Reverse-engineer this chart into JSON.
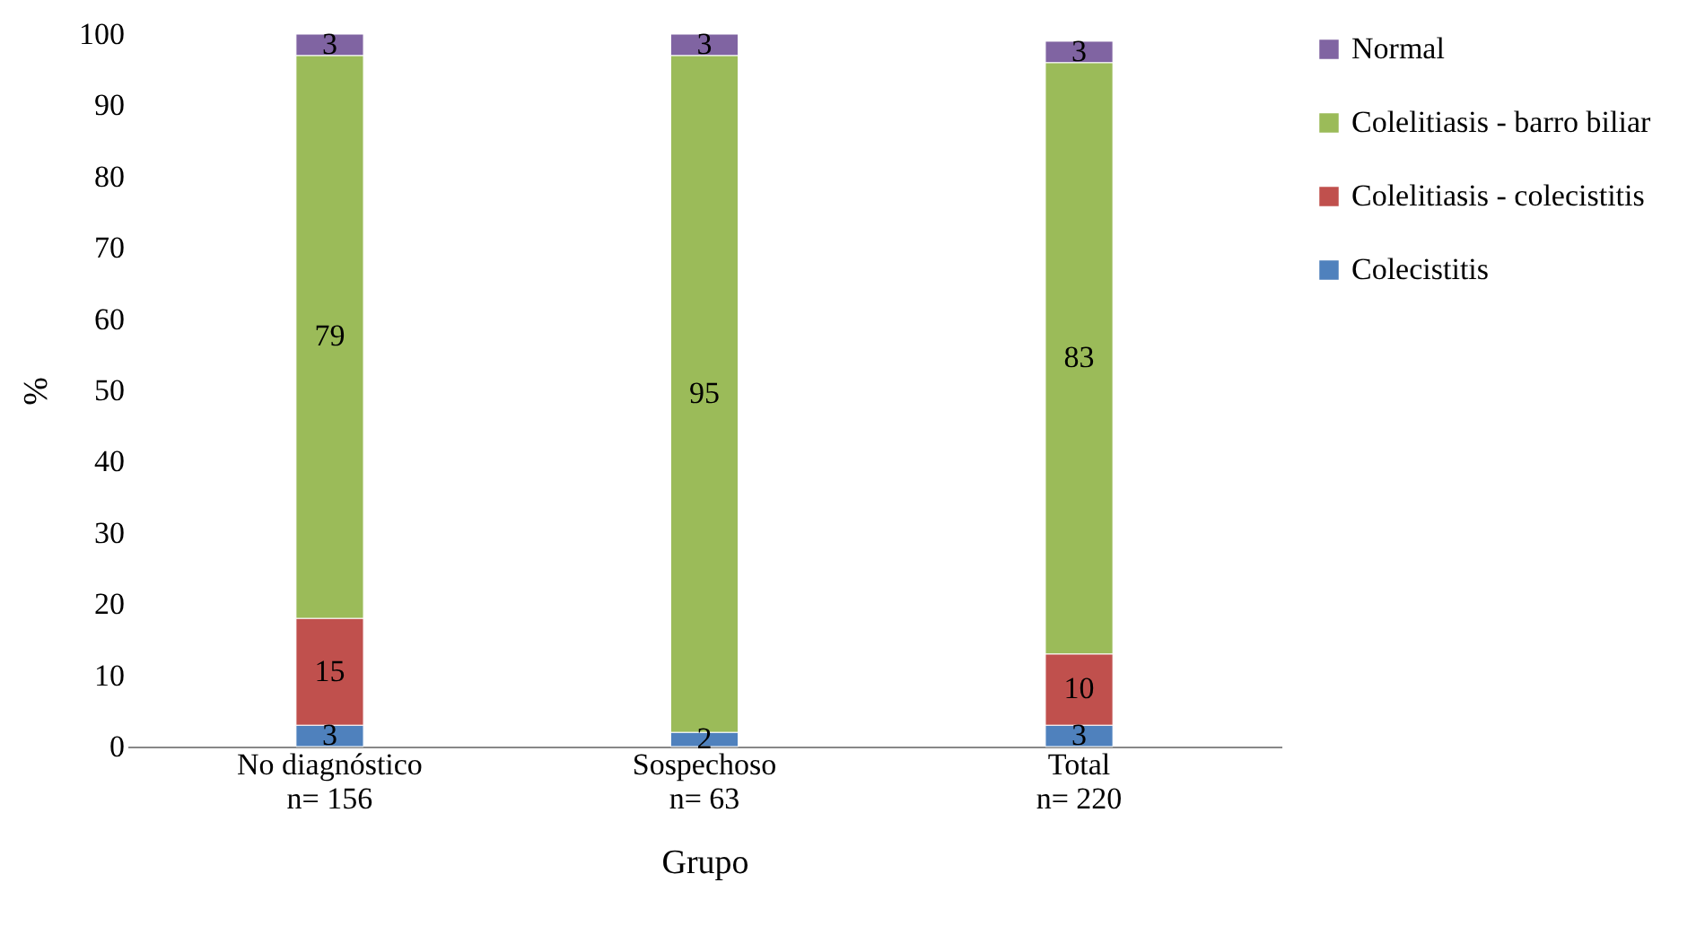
{
  "chart_data": {
    "type": "bar",
    "stacked": true,
    "ylabel": "%",
    "xlabel": "Grupo",
    "categories": [
      "No diagnóstico\nn= 156",
      "Sospechoso\nn= 63",
      "Total\nn= 220"
    ],
    "series": [
      {
        "name": "Colecistitis",
        "color": "#4f81bd",
        "values": [
          3,
          2,
          3
        ]
      },
      {
        "name": "Colelitiasis - colecistitis",
        "color": "#c0504d",
        "values": [
          15,
          null,
          10
        ]
      },
      {
        "name": "Colelitiasis - barro biliar",
        "color": "#9bbb59",
        "values": [
          79,
          95,
          83
        ]
      },
      {
        "name": "Normal",
        "color": "#8064a2",
        "values": [
          3,
          3,
          3
        ]
      }
    ],
    "ylim": [
      0,
      100
    ],
    "yticks": [
      0,
      10,
      20,
      30,
      40,
      50,
      60,
      70,
      80,
      90,
      100
    ],
    "grid": false,
    "legend": "right",
    "data_labels": true
  }
}
